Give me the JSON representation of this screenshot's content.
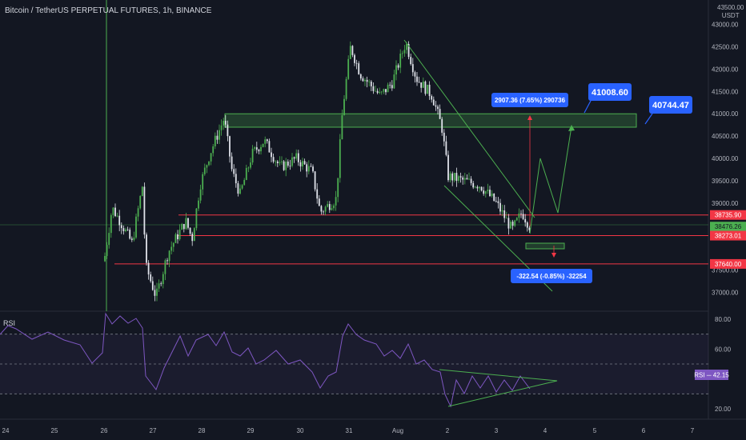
{
  "title": "Bitcoin / TetherUS PERPETUAL FUTURES, 1h, BINANCE",
  "price_axis": {
    "unit_top": "43500.00",
    "unit": "USDT",
    "ticks": [
      "43000.00",
      "42500.00",
      "42000.00",
      "41500.00",
      "41000.00",
      "40500.00",
      "40000.00",
      "39500.00",
      "39000.00",
      "37500.00",
      "37000.00"
    ]
  },
  "rsi_axis": {
    "ticks": [
      "80.00",
      "60.00",
      "20.00"
    ]
  },
  "time_axis": {
    "ticks": [
      "24",
      "25",
      "26",
      "27",
      "28",
      "29",
      "30",
      "31",
      "Aug",
      "2",
      "3",
      "4",
      "5",
      "6",
      "7"
    ]
  },
  "markers": {
    "resistance": "38735.90",
    "last_price": "38476.26",
    "countdown": "58:08",
    "support1": "38273.01",
    "support2": "37640.00",
    "rsi_label": "RSI",
    "rsi_value": "42.15"
  },
  "callouts": {
    "target1": "41008.60",
    "target2": "40744.47",
    "measure_up": "2907.36 (7.65%) 290736",
    "measure_down": "-322.54 (-0.85%) -32254"
  },
  "colors": {
    "background": "#131722",
    "up": "#26a69a",
    "candle_up": "#4caf50",
    "candle_down": "#e0e3eb",
    "red_line": "#f23645",
    "green_zone": "#4caf50",
    "callout": "#2962ff",
    "rsi_line": "#7e57c2"
  },
  "chart_data": {
    "type": "candlestick",
    "title": "Bitcoin / TetherUS PERPETUAL FUTURES, 1h, BINANCE",
    "x_range": [
      "Jul 24",
      "Aug 7"
    ],
    "ylim": [
      36800,
      43500
    ],
    "price_path": [
      {
        "date": "Jul 26",
        "close": 37500
      },
      {
        "date": "Jul 26",
        "close": 38900
      },
      {
        "date": "Jul 27",
        "close": 37000
      },
      {
        "date": "Jul 27",
        "close": 38300
      },
      {
        "date": "Jul 28",
        "close": 39500
      },
      {
        "date": "Jul 28",
        "close": 40500
      },
      {
        "date": "Jul 29",
        "close": 40100
      },
      {
        "date": "Jul 30",
        "close": 39800
      },
      {
        "date": "Jul 30",
        "close": 38800
      },
      {
        "date": "Jul 31",
        "close": 41800
      },
      {
        "date": "Jul 31",
        "close": 42200
      },
      {
        "date": "Aug 1",
        "close": 42300
      },
      {
        "date": "Aug 1",
        "close": 41000
      },
      {
        "date": "Aug 2",
        "close": 39600
      },
      {
        "date": "Aug 3",
        "close": 38700
      },
      {
        "date": "Aug 3",
        "close": 38476.26
      }
    ],
    "horizontal_levels": [
      38735.9,
      38273.01,
      37640.0
    ],
    "targets": [
      41008.6,
      40744.47
    ],
    "rsi": {
      "ticks": [
        20,
        60,
        80
      ],
      "current": 42.15
    }
  }
}
